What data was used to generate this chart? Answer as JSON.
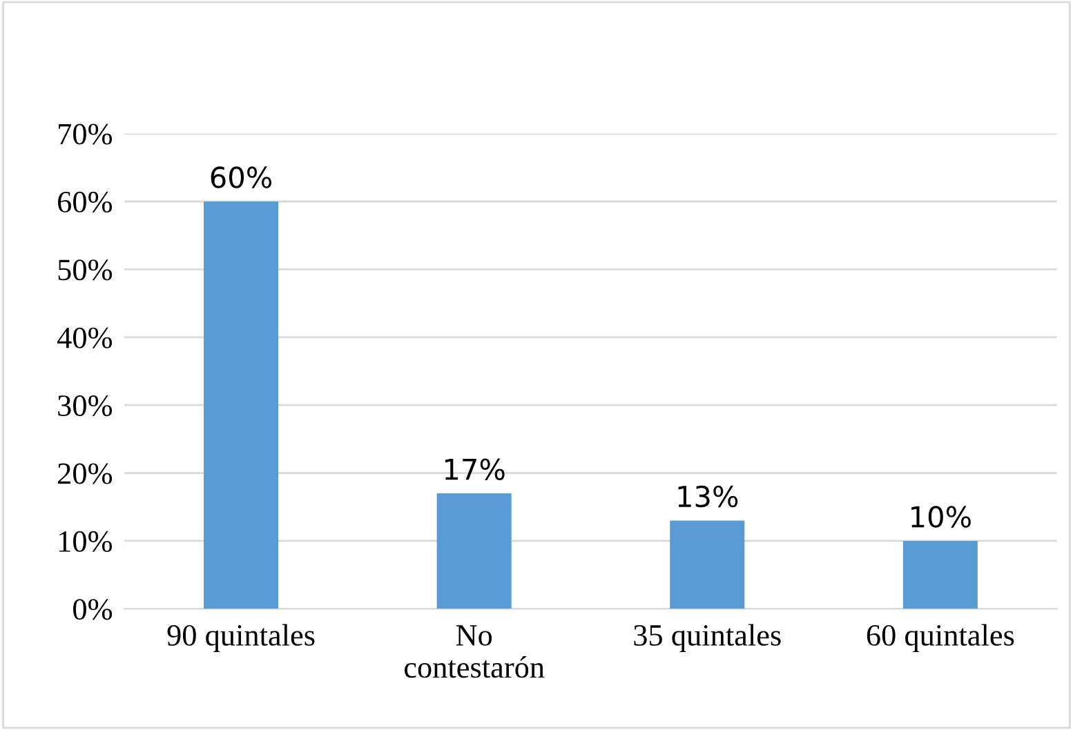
{
  "chart_data": {
    "type": "bar",
    "categories": [
      "90 quintales",
      "No\ncontestarón",
      "35 quintales",
      "60 quintales"
    ],
    "values": [
      60,
      17,
      13,
      10
    ],
    "color": "#5b9bd5",
    "value_labels": [
      "60%",
      "17%",
      "13%",
      "10%"
    ],
    "ylim": [
      0,
      70
    ],
    "yticks": [
      {
        "value": 0,
        "label": "0%"
      },
      {
        "value": 10,
        "label": "10%"
      },
      {
        "value": 20,
        "label": "20%"
      },
      {
        "value": 30,
        "label": "30%"
      },
      {
        "value": 40,
        "label": "40%"
      },
      {
        "value": 50,
        "label": "50%"
      },
      {
        "value": 60,
        "label": "60%"
      },
      {
        "value": 70,
        "label": "70%"
      }
    ],
    "grid": "y",
    "legend": false
  }
}
